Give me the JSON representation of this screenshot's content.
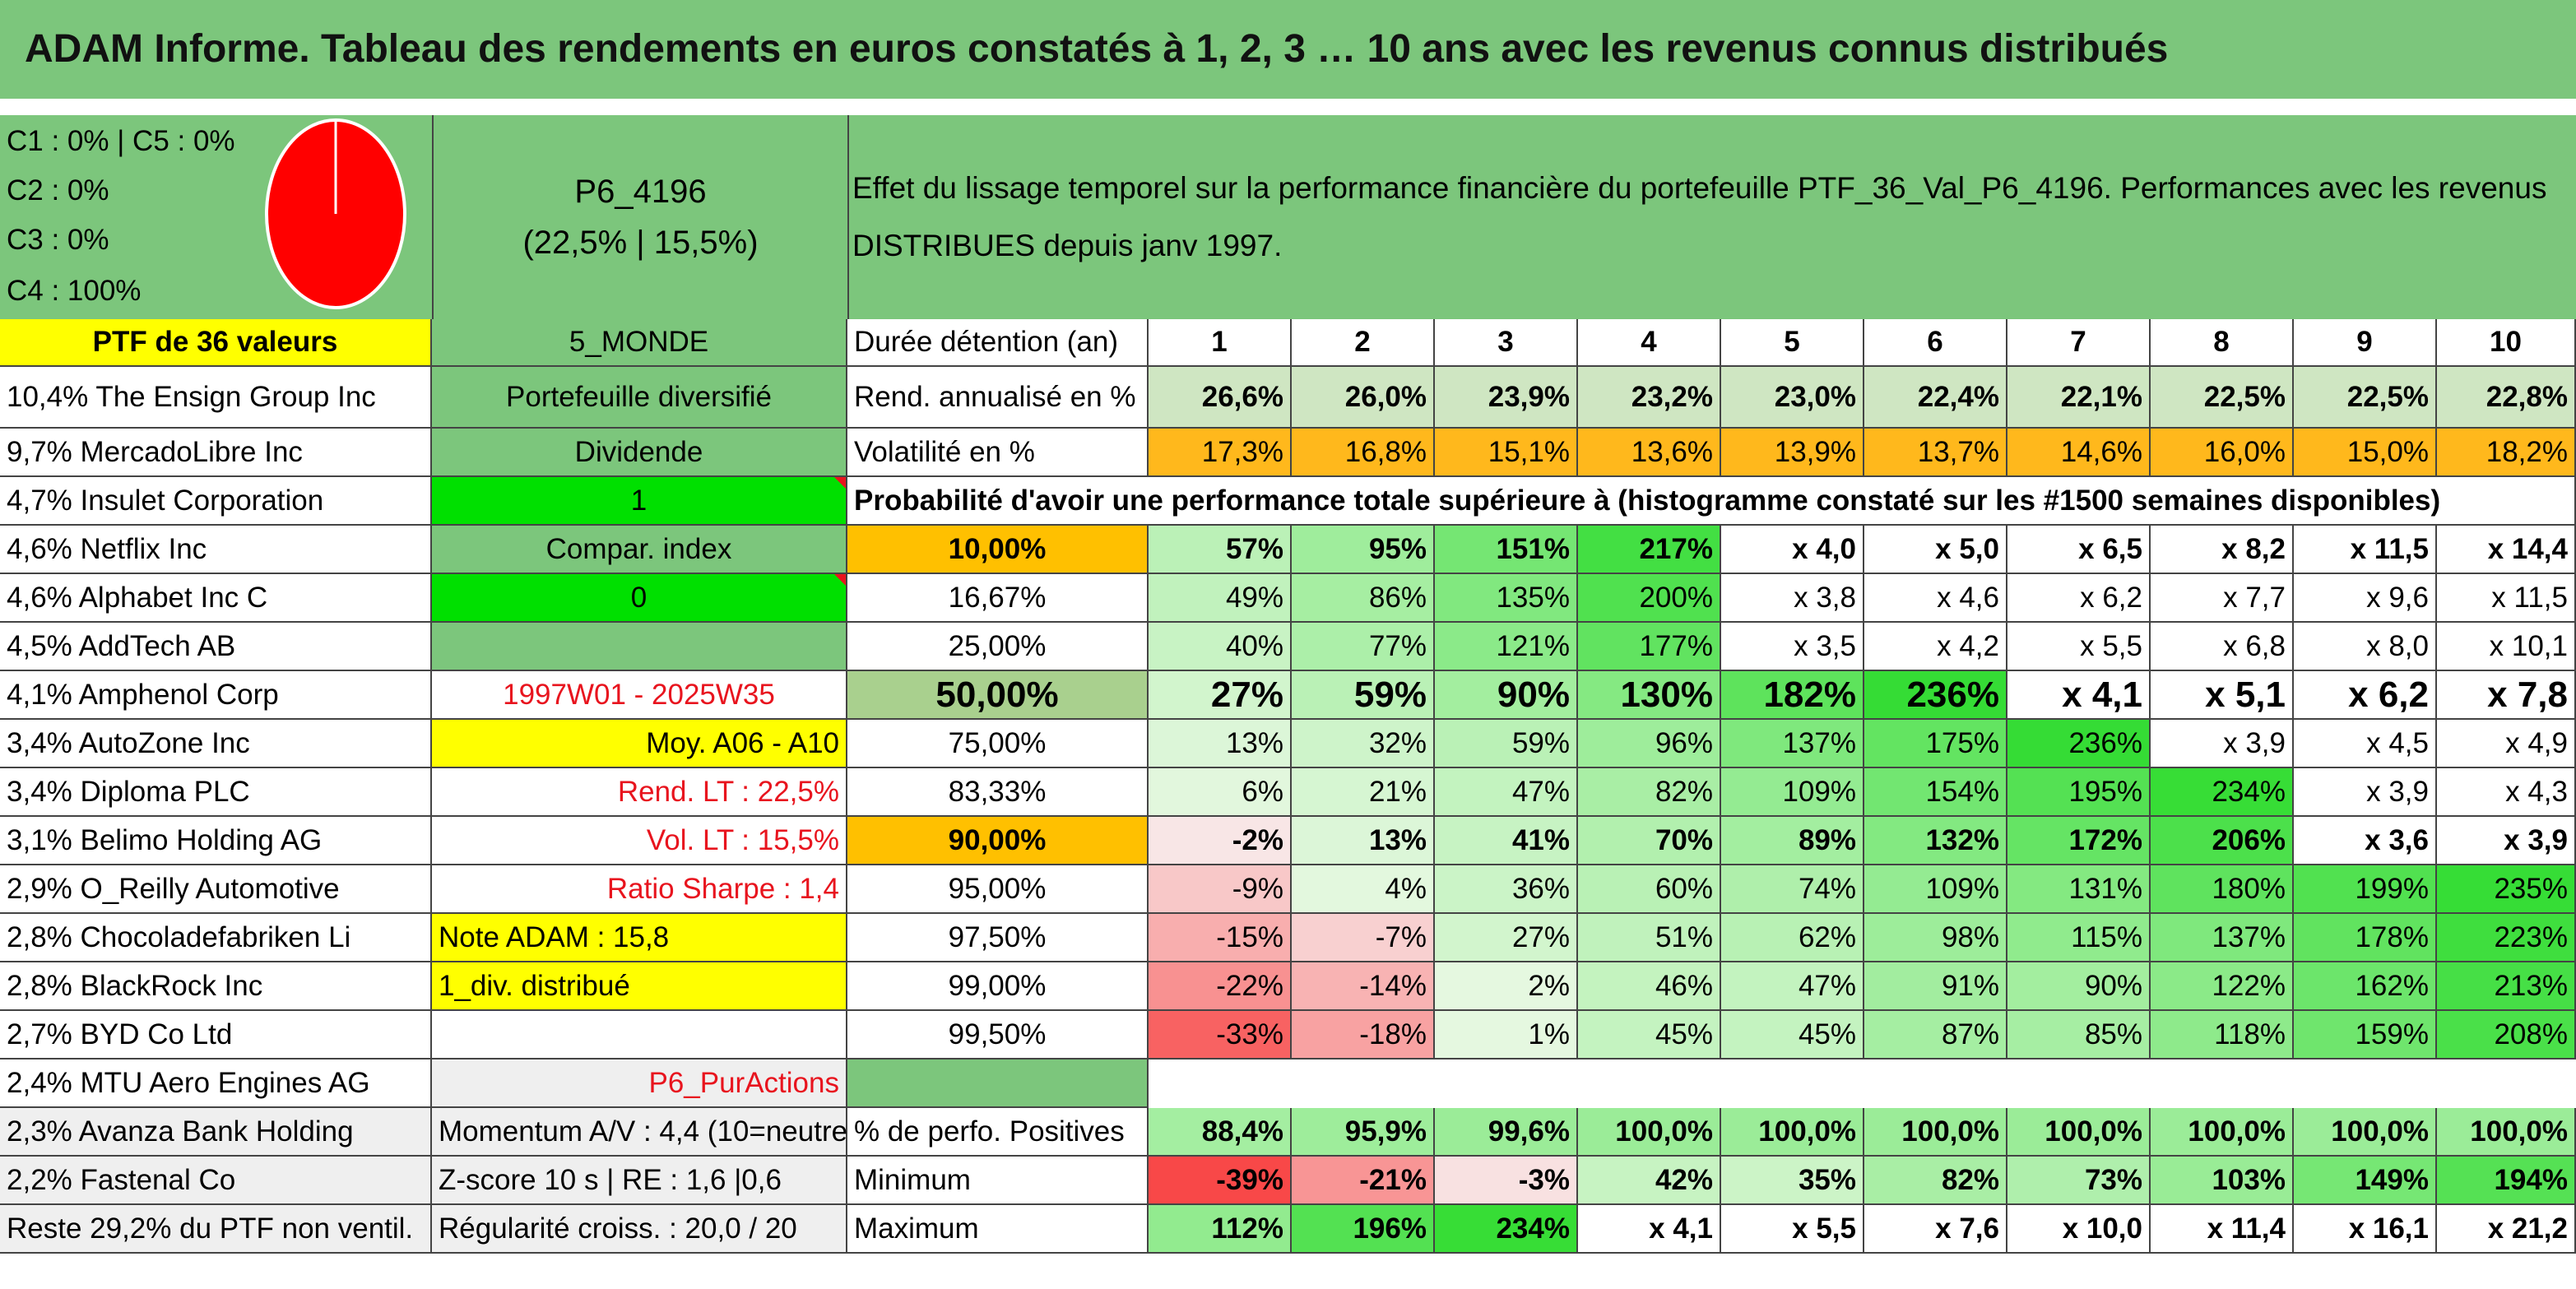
{
  "title": "ADAM Informe. Tableau des rendements en euros constatés à 1, 2, 3 … 10 ans avec les revenus connus distribués",
  "categories": {
    "c1": "C1 : 0% | C5 : 0%",
    "c2": "C2 : 0%",
    "c3": "C3 : 0%",
    "c4": "C4 : 100%"
  },
  "pie": {
    "color": "#ff0000",
    "stroke": "#ffffff"
  },
  "portfolio": {
    "code": "P6_4196",
    "perf": "(22,5% | 15,5%)",
    "ptf_label": "PTF de 36 valeurs",
    "zone": "5_MONDE"
  },
  "description_line1": "Effet du lissage temporel sur la performance financière du portefeuille PTF_36_Val_P6_4196. Performances avec les revenus",
  "description_line2": "DISTRIBUES depuis janv 1997.",
  "holdings": [
    "10,4% The Ensign Group Inc",
    "9,7% MercadoLibre Inc",
    "4,7% Insulet Corporation",
    "4,6% Netflix Inc",
    "4,6% Alphabet Inc C",
    "4,5% AddTech AB",
    "4,1% Amphenol Corp",
    "3,4% AutoZone Inc",
    "3,4% Diploma PLC",
    "3,1% Belimo Holding AG",
    "2,9% O_Reilly Automotive",
    "2,8% Chocoladefabriken Li",
    "2,8% BlackRock Inc",
    "2,7% BYD Co Ltd",
    "2,4% MTU Aero Engines AG",
    "2,3% Avanza Bank Holding",
    "2,2% Fastenal Co",
    "Reste 29,2% du PTF non ventil."
  ],
  "params": {
    "type": "Portefeuille diversifié",
    "dividende": "Dividende",
    "one": "1",
    "compar": "Compar. index",
    "zero": "0",
    "period": "1997W01 - 2025W35",
    "moy": "Moy. A06 - A10",
    "rend_lt": "Rend. LT : 22,5%",
    "vol_lt": "Vol. LT : 15,5%",
    "sharpe": "Ratio Sharpe : 1,4",
    "note": "Note ADAM : 15,8",
    "div": "1_div. distribué",
    "pur": "P6_PurActions",
    "momentum": "Momentum A/V : 4,4 (10=neutre)",
    "zscore": "Z-score 10 s | RE : 1,6 |0,6",
    "regularite": "Régularité croiss. : 20,0 / 20"
  },
  "table": {
    "duration_label": "Durée détention (an)",
    "years": [
      "1",
      "2",
      "3",
      "4",
      "5",
      "6",
      "7",
      "8",
      "9",
      "10"
    ],
    "rend_label": "Rend. annualisé en %",
    "rend": [
      "26,6%",
      "26,0%",
      "23,9%",
      "23,2%",
      "23,0%",
      "22,4%",
      "22,1%",
      "22,5%",
      "22,5%",
      "22,8%"
    ],
    "vol_label": "Volatilité en %",
    "vol": [
      "17,3%",
      "16,8%",
      "15,1%",
      "13,6%",
      "13,9%",
      "13,7%",
      "14,6%",
      "16,0%",
      "15,0%",
      "18,2%"
    ],
    "prob_heading": "Probabilité d'avoir une performance totale supérieure à (histogramme constaté sur les #1500 semaines disponibles)",
    "prob_rows": [
      {
        "p": "10,00%",
        "v": [
          "57%",
          "95%",
          "151%",
          "217%",
          "x 4,0",
          "x 5,0",
          "x 6,5",
          "x 8,2",
          "x 11,5",
          "x 14,4"
        ]
      },
      {
        "p": "16,67%",
        "v": [
          "49%",
          "86%",
          "135%",
          "200%",
          "x 3,8",
          "x 4,6",
          "x 6,2",
          "x 7,7",
          "x 9,6",
          "x 11,5"
        ]
      },
      {
        "p": "25,00%",
        "v": [
          "40%",
          "77%",
          "121%",
          "177%",
          "x 3,5",
          "x 4,2",
          "x 5,5",
          "x 6,8",
          "x 8,0",
          "x 10,1"
        ]
      },
      {
        "p": "50,00%",
        "v": [
          "27%",
          "59%",
          "90%",
          "130%",
          "182%",
          "236%",
          "x 4,1",
          "x 5,1",
          "x 6,2",
          "x 7,8"
        ]
      },
      {
        "p": "75,00%",
        "v": [
          "13%",
          "32%",
          "59%",
          "96%",
          "137%",
          "175%",
          "236%",
          "x 3,9",
          "x 4,5",
          "x 4,9"
        ]
      },
      {
        "p": "83,33%",
        "v": [
          "6%",
          "21%",
          "47%",
          "82%",
          "109%",
          "154%",
          "195%",
          "234%",
          "x 3,9",
          "x 4,3"
        ]
      },
      {
        "p": "90,00%",
        "v": [
          "-2%",
          "13%",
          "41%",
          "70%",
          "89%",
          "132%",
          "172%",
          "206%",
          "x 3,6",
          "x 3,9"
        ]
      },
      {
        "p": "95,00%",
        "v": [
          "-9%",
          "4%",
          "36%",
          "60%",
          "74%",
          "109%",
          "131%",
          "180%",
          "199%",
          "235%"
        ]
      },
      {
        "p": "97,50%",
        "v": [
          "-15%",
          "-7%",
          "27%",
          "51%",
          "62%",
          "98%",
          "115%",
          "137%",
          "178%",
          "223%"
        ]
      },
      {
        "p": "99,00%",
        "v": [
          "-22%",
          "-14%",
          "2%",
          "46%",
          "47%",
          "91%",
          "90%",
          "122%",
          "162%",
          "213%"
        ]
      },
      {
        "p": "99,50%",
        "v": [
          "-33%",
          "-18%",
          "1%",
          "45%",
          "45%",
          "87%",
          "85%",
          "118%",
          "159%",
          "208%"
        ]
      }
    ],
    "pos_label": "% de perfo. Positives",
    "pos": [
      "88,4%",
      "95,9%",
      "99,6%",
      "100,0%",
      "100,0%",
      "100,0%",
      "100,0%",
      "100,0%",
      "100,0%",
      "100,0%"
    ],
    "min_label": "Minimum",
    "min": [
      "-39%",
      "-21%",
      "-3%",
      "42%",
      "35%",
      "82%",
      "73%",
      "103%",
      "149%",
      "194%"
    ],
    "max_label": "Maximum",
    "max": [
      "112%",
      "196%",
      "234%",
      "x 4,1",
      "x 5,5",
      "x 7,6",
      "x 10,0",
      "x 11,4",
      "x 16,1",
      "x 21,2"
    ]
  },
  "colors": {
    "header_green": "#7cc67c",
    "yellow": "#ffff00",
    "lime": "#00e000",
    "orange": "#ffc000",
    "red_text": "#e8141e"
  }
}
